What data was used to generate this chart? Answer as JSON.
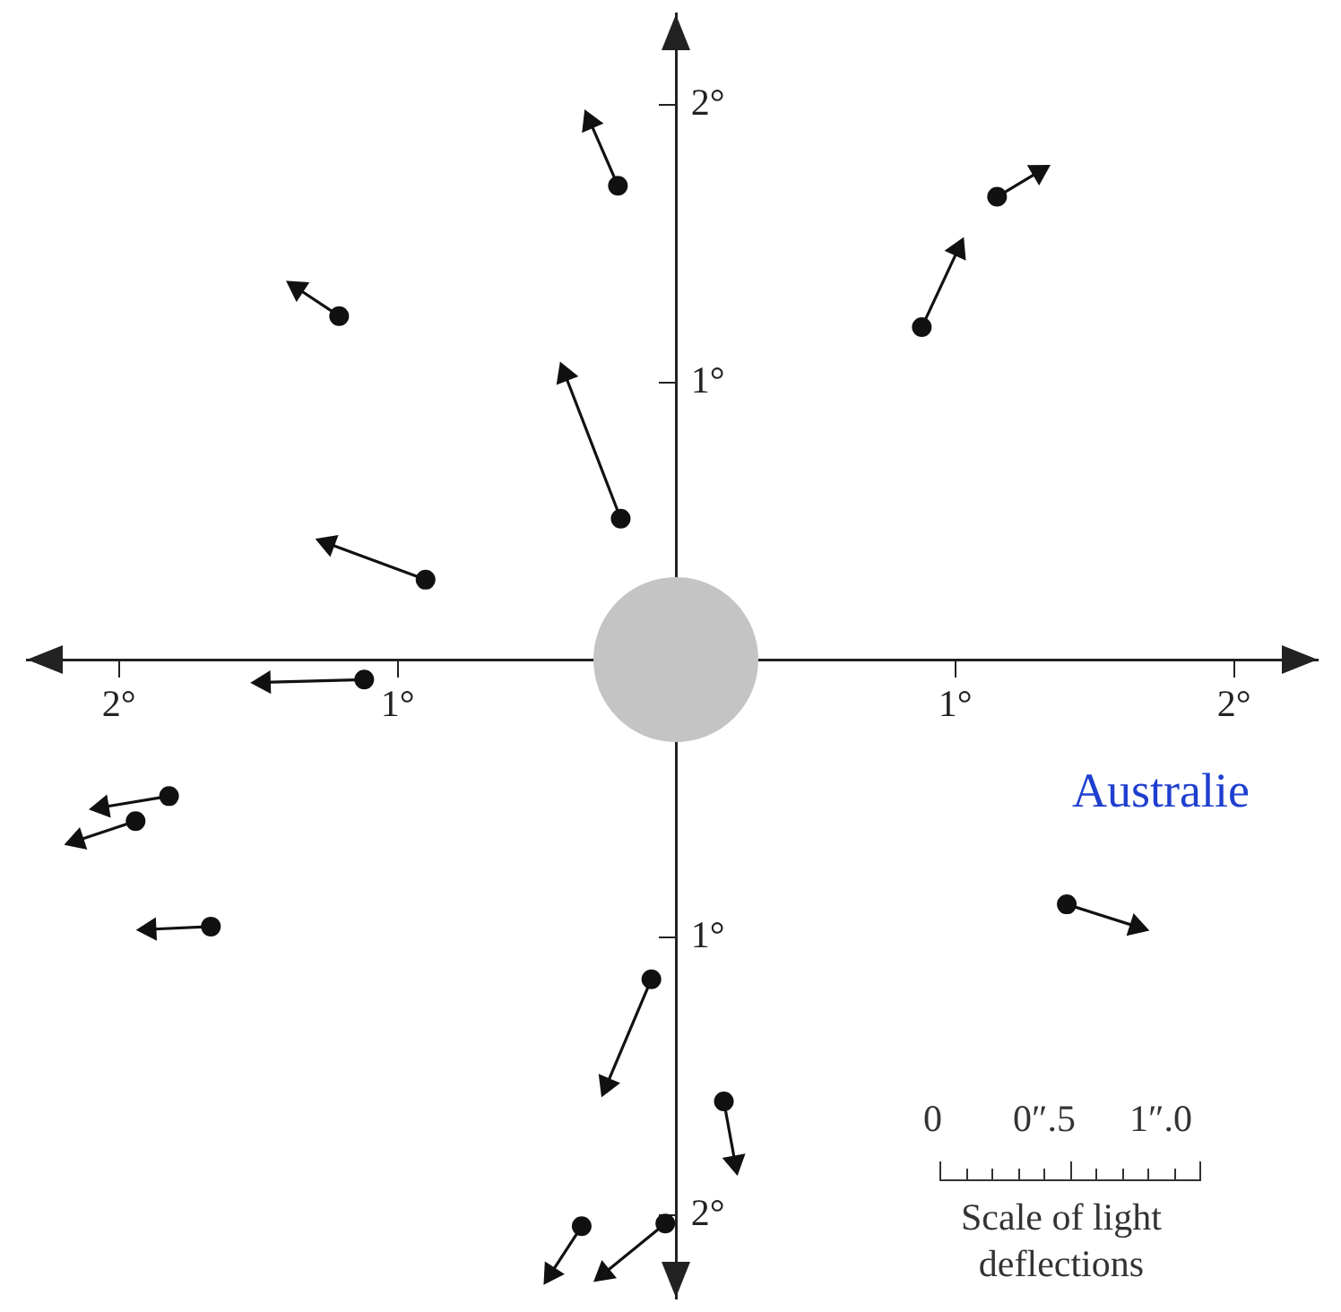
{
  "chart_data": {
    "type": "scatter",
    "marker": "circle",
    "line_style": "solid",
    "grid": false,
    "legend": false,
    "xlim": [
      -2.33,
      2.3
    ],
    "ylim": [
      -2.3,
      2.33
    ],
    "xticks": [
      {
        "value": -2,
        "label": "2°"
      },
      {
        "value": -1,
        "label": "1°"
      },
      {
        "value": 1,
        "label": "1°"
      },
      {
        "value": 2,
        "label": "2°"
      }
    ],
    "yticks": [
      {
        "value": -2,
        "label": "2°"
      },
      {
        "value": -1,
        "label": "1°"
      },
      {
        "value": 1,
        "label": "1°"
      },
      {
        "value": 2,
        "label": "2°"
      }
    ],
    "annotations": [
      "0",
      "0″.5",
      "1″.0",
      "Scale of light deflections",
      "Australie"
    ],
    "series": [
      {
        "type": "scatter",
        "color": "#111111",
        "x": [
          -0.21,
          1.15,
          -1.21,
          0.88,
          -0.2,
          -0.9,
          -1.12,
          -1.82,
          -1.94,
          -1.67,
          1.4,
          -0.09,
          0.17,
          -0.34,
          -0.04
        ],
        "values": [
          1.71,
          1.67,
          1.24,
          1.2,
          0.51,
          0.29,
          -0.07,
          -0.49,
          -0.58,
          -0.96,
          -0.88,
          -1.15,
          -1.59,
          -2.04,
          -2.03
        ]
      },
      {
        "type": "line",
        "marker": "triangle",
        "color": "#111111",
        "x": [
          -0.21,
          -0.31
        ],
        "values": [
          1.71,
          1.94
        ]
      },
      {
        "type": "line",
        "marker": "triangle",
        "color": "#111111",
        "x": [
          1.15,
          1.3
        ],
        "values": [
          1.67,
          1.76
        ]
      },
      {
        "type": "line",
        "marker": "triangle",
        "color": "#111111",
        "x": [
          -1.21,
          -1.36
        ],
        "values": [
          1.24,
          1.34
        ]
      },
      {
        "type": "line",
        "marker": "triangle",
        "color": "#111111",
        "x": [
          0.88,
          1.01
        ],
        "values": [
          1.2,
          1.48
        ]
      },
      {
        "type": "line",
        "marker": "triangle",
        "color": "#111111",
        "x": [
          -0.2,
          -0.4
        ],
        "values": [
          0.51,
          1.03
        ]
      },
      {
        "type": "line",
        "marker": "triangle",
        "color": "#111111",
        "x": [
          -0.9,
          -1.25
        ],
        "values": [
          0.29,
          0.42
        ]
      },
      {
        "type": "line",
        "marker": "triangle",
        "color": "#111111",
        "x": [
          -1.12,
          -1.48
        ],
        "values": [
          -0.07,
          -0.08
        ]
      },
      {
        "type": "line",
        "marker": "triangle",
        "color": "#111111",
        "x": [
          -1.82,
          -2.06
        ],
        "values": [
          -0.49,
          -0.53
        ]
      },
      {
        "type": "line",
        "marker": "triangle",
        "color": "#111111",
        "x": [
          -1.94,
          -2.15
        ],
        "values": [
          -0.58,
          -0.65
        ]
      },
      {
        "type": "line",
        "marker": "triangle",
        "color": "#111111",
        "x": [
          -1.67,
          -1.89
        ],
        "values": [
          -0.96,
          -0.97
        ]
      },
      {
        "type": "line",
        "marker": "triangle",
        "color": "#111111",
        "x": [
          1.4,
          1.65
        ],
        "values": [
          -0.88,
          -0.96
        ]
      },
      {
        "type": "line",
        "marker": "triangle",
        "color": "#111111",
        "x": [
          -0.09,
          -0.25
        ],
        "values": [
          -1.15,
          -1.53
        ]
      },
      {
        "type": "line",
        "marker": "triangle",
        "color": "#111111",
        "x": [
          0.17,
          0.21
        ],
        "values": [
          -1.59,
          -1.81
        ]
      },
      {
        "type": "line",
        "marker": "triangle",
        "color": "#111111",
        "x": [
          -0.34,
          -0.45
        ],
        "values": [
          -2.04,
          -2.21
        ]
      },
      {
        "type": "line",
        "marker": "triangle",
        "color": "#111111",
        "x": [
          -0.04,
          -0.26
        ],
        "values": [
          -2.03,
          -2.21
        ]
      }
    ]
  }
}
